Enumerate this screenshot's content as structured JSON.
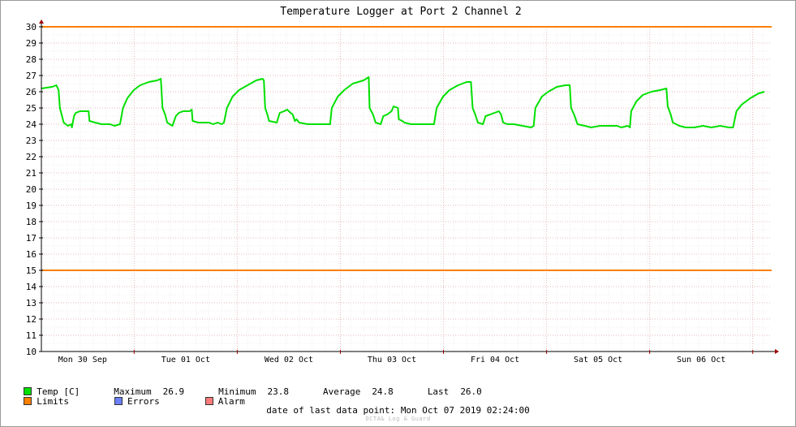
{
  "chart_data": {
    "type": "line",
    "title": "Temperature Logger at Port 2 Channel 2",
    "ylim": [
      10,
      30
    ],
    "y_ticks": [
      10,
      11,
      12,
      13,
      14,
      15,
      16,
      17,
      18,
      19,
      20,
      21,
      22,
      23,
      24,
      25,
      26,
      27,
      28,
      29,
      30
    ],
    "x_tick_labels": [
      "Mon 30 Sep",
      "Tue 01 Oct",
      "Wed 02 Oct",
      "Thu 03 Oct",
      "Fri 04 Oct",
      "Sat 05 Oct",
      "Sun 06 Oct"
    ],
    "x_range_hours": [
      0,
      170
    ],
    "grid": true,
    "limits": {
      "upper": 30,
      "lower": 15,
      "color": "#ff7f00"
    },
    "series": [
      {
        "name": "Temp [C]",
        "color": "#00e000",
        "points": [
          [
            0,
            26.2
          ],
          [
            2.5,
            26.3
          ],
          [
            3.5,
            26.4
          ],
          [
            4,
            26.1
          ],
          [
            4.3,
            25.0
          ],
          [
            4.7,
            24.6
          ],
          [
            5.2,
            24.1
          ],
          [
            6.2,
            23.9
          ],
          [
            7,
            24.0
          ],
          [
            7.1,
            23.8
          ],
          [
            7.6,
            24.5
          ],
          [
            8,
            24.7
          ],
          [
            9,
            24.8
          ],
          [
            11,
            24.8
          ],
          [
            11.2,
            24.2
          ],
          [
            12.5,
            24.1
          ],
          [
            14,
            24.0
          ],
          [
            16,
            24.0
          ],
          [
            17,
            23.9
          ],
          [
            18.3,
            24.0
          ],
          [
            19,
            25.0
          ],
          [
            20,
            25.6
          ],
          [
            21.5,
            26.1
          ],
          [
            23,
            26.4
          ],
          [
            25,
            26.6
          ],
          [
            27,
            26.7
          ],
          [
            27.8,
            26.8
          ],
          [
            28.2,
            25.0
          ],
          [
            28.8,
            24.6
          ],
          [
            29.3,
            24.1
          ],
          [
            30.5,
            23.9
          ],
          [
            31.3,
            24.5
          ],
          [
            32,
            24.7
          ],
          [
            33,
            24.8
          ],
          [
            34.5,
            24.8
          ],
          [
            35,
            24.9
          ],
          [
            35.2,
            24.2
          ],
          [
            36.5,
            24.1
          ],
          [
            39,
            24.1
          ],
          [
            40,
            24.0
          ],
          [
            41,
            24.1
          ],
          [
            42,
            24.0
          ],
          [
            42.5,
            24.1
          ],
          [
            43.2,
            25.0
          ],
          [
            44.5,
            25.7
          ],
          [
            46,
            26.1
          ],
          [
            48,
            26.4
          ],
          [
            50,
            26.7
          ],
          [
            51.5,
            26.8
          ],
          [
            51.8,
            26.7
          ],
          [
            52.1,
            25.0
          ],
          [
            52.6,
            24.6
          ],
          [
            53,
            24.2
          ],
          [
            54.8,
            24.1
          ],
          [
            55.5,
            24.7
          ],
          [
            56.5,
            24.8
          ],
          [
            57.2,
            24.9
          ],
          [
            58,
            24.7
          ],
          [
            58.5,
            24.6
          ],
          [
            59,
            24.2
          ],
          [
            59.4,
            24.3
          ],
          [
            60,
            24.1
          ],
          [
            62,
            24.0
          ],
          [
            64,
            24.0
          ],
          [
            66,
            24.0
          ],
          [
            67.2,
            24.0
          ],
          [
            67.6,
            25.0
          ],
          [
            69,
            25.7
          ],
          [
            70.5,
            26.1
          ],
          [
            72.5,
            26.5
          ],
          [
            75,
            26.7
          ],
          [
            76.2,
            26.9
          ],
          [
            76.4,
            25.0
          ],
          [
            77.2,
            24.6
          ],
          [
            77.8,
            24.1
          ],
          [
            79,
            24.0
          ],
          [
            79.6,
            24.5
          ],
          [
            80.5,
            24.6
          ],
          [
            81.5,
            24.8
          ],
          [
            82,
            25.1
          ],
          [
            83,
            25.0
          ],
          [
            83.2,
            24.3
          ],
          [
            84,
            24.2
          ],
          [
            84.5,
            24.1
          ],
          [
            86,
            24.0
          ],
          [
            88,
            24.0
          ],
          [
            90,
            24.0
          ],
          [
            91.4,
            24.0
          ],
          [
            92,
            25.0
          ],
          [
            93.5,
            25.7
          ],
          [
            95,
            26.1
          ],
          [
            97,
            26.4
          ],
          [
            99,
            26.6
          ],
          [
            100,
            26.6
          ],
          [
            100.4,
            25.0
          ],
          [
            101,
            24.6
          ],
          [
            101.6,
            24.1
          ],
          [
            102.8,
            24.0
          ],
          [
            103.4,
            24.5
          ],
          [
            104.5,
            24.6
          ],
          [
            105.5,
            24.7
          ],
          [
            106.5,
            24.8
          ],
          [
            107,
            24.6
          ],
          [
            107.5,
            24.1
          ],
          [
            108.5,
            24.0
          ],
          [
            110,
            24.0
          ],
          [
            112,
            23.9
          ],
          [
            114,
            23.8
          ],
          [
            114.6,
            23.9
          ],
          [
            115,
            25.0
          ],
          [
            116.5,
            25.7
          ],
          [
            118,
            26.0
          ],
          [
            120,
            26.3
          ],
          [
            122,
            26.4
          ],
          [
            123,
            26.4
          ],
          [
            123.3,
            25.0
          ],
          [
            124,
            24.6
          ],
          [
            124.8,
            24.0
          ],
          [
            126.5,
            23.9
          ],
          [
            128,
            23.8
          ],
          [
            130,
            23.9
          ],
          [
            132,
            23.9
          ],
          [
            134,
            23.9
          ],
          [
            135,
            23.8
          ],
          [
            136.5,
            23.9
          ],
          [
            137,
            23.8
          ],
          [
            137.3,
            24.8
          ],
          [
            138.5,
            25.4
          ],
          [
            140,
            25.8
          ],
          [
            142,
            26.0
          ],
          [
            144,
            26.1
          ],
          [
            145.5,
            26.2
          ],
          [
            145.8,
            25.1
          ],
          [
            146.5,
            24.6
          ],
          [
            147,
            24.1
          ],
          [
            148.5,
            23.9
          ],
          [
            150,
            23.8
          ],
          [
            152,
            23.8
          ],
          [
            154,
            23.9
          ],
          [
            156,
            23.8
          ],
          [
            158,
            23.9
          ],
          [
            160,
            23.8
          ],
          [
            161,
            23.8
          ],
          [
            161.8,
            24.8
          ],
          [
            163,
            25.2
          ],
          [
            165,
            25.6
          ],
          [
            167,
            25.9
          ],
          [
            168.3,
            26.0
          ]
        ]
      }
    ]
  },
  "legend": {
    "temp_label": "Temp [C]",
    "temp_color": "#00e000",
    "maximum_label": "Maximum",
    "maximum_value": "26.9",
    "minimum_label": "Minimum",
    "minimum_value": "23.8",
    "average_label": "Average",
    "average_value": "24.8",
    "last_label": "Last",
    "last_value": "26.0",
    "limits_label": "Limits",
    "limits_color": "#ff7f00",
    "errors_label": "Errors",
    "errors_color": "#6b7fff",
    "alarm_label": "Alarm",
    "alarm_color": "#ff7a7a"
  },
  "footer": {
    "last_point_label": "date of last data point:",
    "last_point_value": "Mon Oct 07 2019 02:24:00",
    "watermark": "OCTA& Log & Guard"
  }
}
